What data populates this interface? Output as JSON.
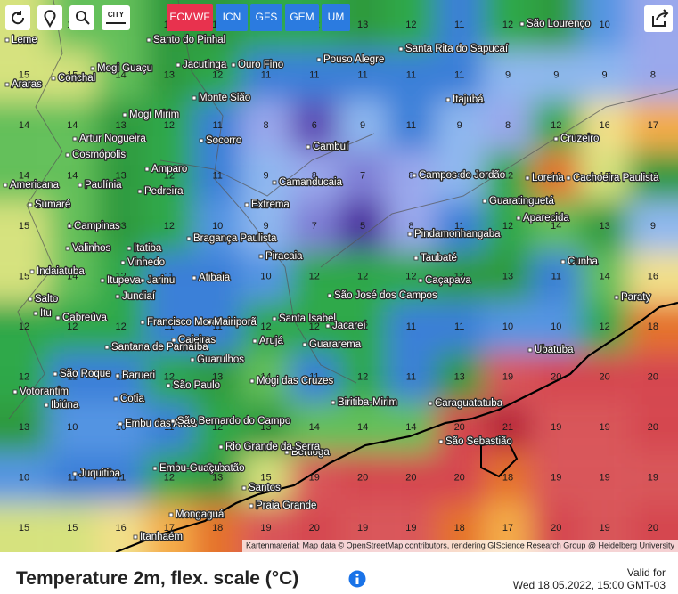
{
  "toolbar": {
    "city_button": "CITY",
    "models": [
      "ECMWF",
      "ICN",
      "GFS",
      "GEM",
      "UM"
    ],
    "active_model": "ECMWF"
  },
  "map": {
    "temperature_grid": [
      [
        15,
        14,
        14,
        13,
        13,
        12,
        12,
        13,
        12,
        11,
        12,
        13,
        10,
        8
      ],
      [
        15,
        15,
        14,
        13,
        12,
        11,
        11,
        11,
        11,
        11,
        9,
        9,
        9,
        8
      ],
      [
        14,
        14,
        13,
        12,
        11,
        8,
        6,
        9,
        11,
        9,
        8,
        12,
        16,
        17
      ],
      [
        14,
        14,
        13,
        12,
        11,
        9,
        8,
        7,
        8,
        9,
        12,
        18,
        15,
        13
      ],
      [
        15,
        14,
        13,
        12,
        10,
        9,
        7,
        5,
        8,
        11,
        12,
        14,
        13,
        9
      ],
      [
        15,
        14,
        12,
        11,
        11,
        10,
        12,
        12,
        12,
        13,
        13,
        11,
        14,
        16
      ],
      [
        12,
        12,
        12,
        11,
        11,
        12,
        12,
        12,
        11,
        11,
        10,
        10,
        12,
        18
      ],
      [
        12,
        11,
        11,
        12,
        13,
        14,
        11,
        12,
        11,
        13,
        19,
        20,
        20,
        20
      ],
      [
        13,
        10,
        10,
        11,
        12,
        13,
        14,
        14,
        14,
        20,
        21,
        19,
        19,
        20
      ],
      [
        10,
        11,
        11,
        12,
        13,
        15,
        19,
        20,
        20,
        20,
        18,
        19,
        19,
        19
      ],
      [
        15,
        15,
        16,
        17,
        18,
        19,
        20,
        19,
        19,
        18,
        17,
        20,
        19,
        20
      ]
    ],
    "cities": [
      "Leme",
      "Conchal",
      "Araras",
      "Mogi Guaçu",
      "Mogi Mirim",
      "Artur Nogueira",
      "Cosmópolis",
      "Americana",
      "Paulínia",
      "Sumaré",
      "Campinas",
      "Valinhos",
      "Itatiba",
      "Vinhedo",
      "Indaiatuba",
      "Itupeva",
      "Jarinu",
      "Jundiaí",
      "Salto",
      "Itu",
      "Cabreúva",
      "Francisco Morato",
      "Santo do Pinhal",
      "Jacutinga",
      "Ouro Fino",
      "Monte Sião",
      "Socorro",
      "Amparo",
      "Pedreira",
      "Bragança Paulista",
      "Extrema",
      "Camanducaia",
      "Cambuí",
      "Pouso Alegre",
      "Santa Rita do Sapucaí",
      "Itajubá",
      "São Lourenço",
      "Cruzeiro",
      "Lorena",
      "Cachoeira Paulista",
      "Guaratinguetá",
      "Aparecida",
      "Pindamonhangaba",
      "Taubaté",
      "Caçapava",
      "São José dos Campos",
      "Campos do Jordão",
      "Piracaia",
      "Atibaia",
      "Mairiporã",
      "Santa Isabel",
      "Jacareí",
      "Guararema",
      "Arujá",
      "Caieiras",
      "Santana de Parnaíba",
      "Barueri",
      "São Roque",
      "Guarulhos",
      "Mogi das Cruzes",
      "São Paulo",
      "Cotia",
      "Votorantim",
      "Ibiúna",
      "Embu das Artes",
      "São Bernardo do Campo",
      "Biritiba-Mirim",
      "Caraguatatuba",
      "Ubatuba",
      "Paraty",
      "Cunha",
      "São Sebastião",
      "Bertioga",
      "Rio Grande da Serra",
      "Cubatão",
      "Embu-Guaçu",
      "Juquitiba",
      "Santos",
      "Praia Grande",
      "Mongaguá",
      "Itanhaém"
    ],
    "attribution": "Kartenmaterial: Map data © OpenStreetMap contributors, rendering GIScience Research Group @ Heidelberg University"
  },
  "footer": {
    "title": "Temperature 2m, flex. scale (°C)",
    "valid_label": "Valid for",
    "valid_time": "Wed 18.05.2022, 15:00 GMT-03"
  }
}
